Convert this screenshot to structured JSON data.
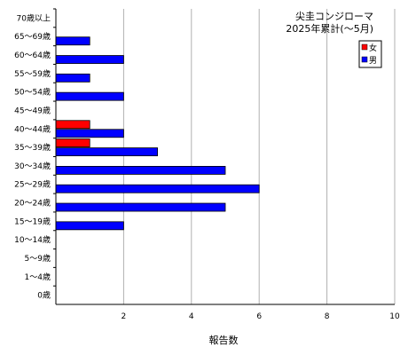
{
  "chart_data": {
    "type": "bar",
    "orientation": "horizontal",
    "title": "尖圭コンジローマ",
    "subtitle": "2025年累計(～5月)",
    "xlabel": "報告数",
    "ylabel": "",
    "xlim": [
      0,
      10
    ],
    "xticks": [
      "2",
      "4",
      "6",
      "8",
      "10"
    ],
    "grid": true,
    "legend_position": "top-right",
    "categories": [
      "70歳以上",
      "65～69歳",
      "60～64歳",
      "55～59歳",
      "50～54歳",
      "45～49歳",
      "40～44歳",
      "35～39歳",
      "30～34歳",
      "25～29歳",
      "20～24歳",
      "15～19歳",
      "10～14歳",
      "5～9歳",
      "1～4歳",
      "0歳"
    ],
    "series": [
      {
        "name": "女",
        "color": "#ff0000",
        "values": [
          0,
          0,
          0,
          0,
          0,
          0,
          1,
          1,
          0,
          0,
          0,
          0,
          0,
          0,
          0,
          0
        ]
      },
      {
        "name": "男",
        "color": "#0000ff",
        "values": [
          0,
          1,
          2,
          1,
          2,
          0,
          2,
          3,
          5,
          6,
          5,
          2,
          0,
          0,
          0,
          0
        ]
      }
    ]
  }
}
